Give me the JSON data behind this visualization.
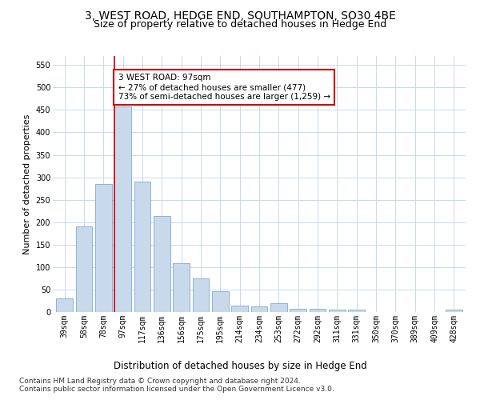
{
  "title1": "3, WEST ROAD, HEDGE END, SOUTHAMPTON, SO30 4BE",
  "title2": "Size of property relative to detached houses in Hedge End",
  "xlabel": "Distribution of detached houses by size in Hedge End",
  "ylabel": "Number of detached properties",
  "categories": [
    "39sqm",
    "58sqm",
    "78sqm",
    "97sqm",
    "117sqm",
    "136sqm",
    "156sqm",
    "175sqm",
    "195sqm",
    "214sqm",
    "234sqm",
    "253sqm",
    "272sqm",
    "292sqm",
    "311sqm",
    "331sqm",
    "350sqm",
    "370sqm",
    "389sqm",
    "409sqm",
    "428sqm"
  ],
  "values": [
    30,
    190,
    285,
    457,
    290,
    213,
    108,
    74,
    46,
    14,
    13,
    20,
    8,
    8,
    5,
    5,
    0,
    0,
    0,
    0,
    5
  ],
  "bar_color": "#c8d9ec",
  "bar_edge_color": "#7eaad4",
  "highlight_index": 3,
  "highlight_line_color": "#cc0000",
  "annotation_line1": "3 WEST ROAD: 97sqm",
  "annotation_line2": "← 27% of detached houses are smaller (477)",
  "annotation_line3": "73% of semi-detached houses are larger (1,259) →",
  "annotation_box_color": "#ffffff",
  "annotation_box_edge_color": "#cc0000",
  "ylim": [
    0,
    570
  ],
  "yticks": [
    0,
    50,
    100,
    150,
    200,
    250,
    300,
    350,
    400,
    450,
    500,
    550
  ],
  "footer1": "Contains HM Land Registry data © Crown copyright and database right 2024.",
  "footer2": "Contains public sector information licensed under the Open Government Licence v3.0.",
  "bg_color": "#ffffff",
  "grid_color": "#c8d9ec",
  "title1_fontsize": 10,
  "title2_fontsize": 9,
  "xlabel_fontsize": 8.5,
  "ylabel_fontsize": 8,
  "tick_fontsize": 7,
  "annotation_fontsize": 7.5,
  "footer_fontsize": 6.5
}
